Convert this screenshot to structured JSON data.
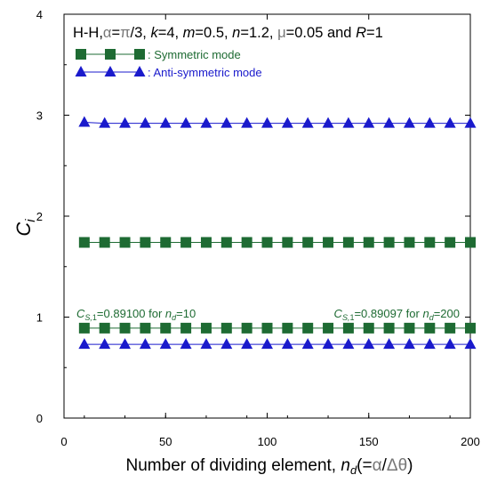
{
  "chart_data": {
    "type": "scatter",
    "title": "H-H,α=π/3, k=4, m=0.5, n=1.2, μ=0.05 and R=1",
    "xlabel": "Number of dividing element, nd(=α/Δθ)",
    "ylabel": "Ci",
    "xlim": [
      0,
      200
    ],
    "ylim": [
      0,
      4
    ],
    "xticks": [
      "0",
      "50",
      "100",
      "150",
      "200"
    ],
    "yticks": [
      "0",
      "1",
      "2",
      "3",
      "4"
    ],
    "grid": false,
    "legend_position": "top-left",
    "x": [
      10,
      20,
      30,
      40,
      50,
      60,
      70,
      80,
      90,
      100,
      110,
      120,
      130,
      140,
      150,
      160,
      170,
      180,
      190,
      200
    ],
    "series": [
      {
        "name": ": Symmetric mode",
        "marker": "square",
        "color": "#1e6b33",
        "values": [
          0.891,
          0.891,
          0.891,
          0.891,
          0.891,
          0.891,
          0.891,
          0.891,
          0.891,
          0.891,
          0.891,
          0.891,
          0.891,
          0.891,
          0.891,
          0.891,
          0.891,
          0.891,
          0.891,
          0.891
        ]
      },
      {
        "name": ": Symmetric mode",
        "marker": "square",
        "color": "#1e6b33",
        "values": [
          1.74,
          1.74,
          1.74,
          1.74,
          1.74,
          1.74,
          1.74,
          1.74,
          1.74,
          1.74,
          1.74,
          1.74,
          1.74,
          1.74,
          1.74,
          1.74,
          1.74,
          1.74,
          1.74,
          1.74
        ]
      },
      {
        "name": ": Anti-symmetric mode",
        "marker": "triangle",
        "color": "#1a1acc",
        "values": [
          0.73,
          0.73,
          0.73,
          0.73,
          0.73,
          0.73,
          0.73,
          0.73,
          0.73,
          0.73,
          0.73,
          0.73,
          0.73,
          0.73,
          0.73,
          0.73,
          0.73,
          0.73,
          0.73,
          0.73
        ]
      },
      {
        "name": ": Anti-symmetric mode",
        "marker": "triangle",
        "color": "#1a1acc",
        "values": [
          2.93,
          2.92,
          2.92,
          2.92,
          2.92,
          2.92,
          2.92,
          2.92,
          2.92,
          2.92,
          2.92,
          2.92,
          2.92,
          2.92,
          2.92,
          2.92,
          2.92,
          2.92,
          2.92,
          2.92
        ]
      }
    ],
    "legend": [
      {
        "label": ": Symmetric mode",
        "marker": "square",
        "color": "#1e6b33"
      },
      {
        "label": ": Anti-symmetric mode",
        "marker": "triangle",
        "color": "#1a1acc"
      }
    ],
    "annotations": [
      {
        "text": "CS,1=0.89100 for nd=10",
        "color": "#1e6b33"
      },
      {
        "text": "CS,1=0.89097 for nd=200",
        "color": "#1e6b33"
      }
    ]
  }
}
